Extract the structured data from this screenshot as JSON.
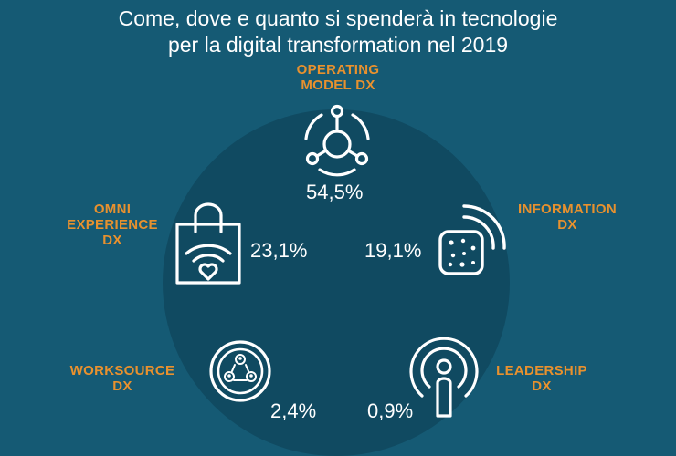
{
  "title": {
    "line1": "Come, dove e quanto si spenderà in tecnologie",
    "line2": "per la digital transformation nel 2019"
  },
  "segments": {
    "operating": {
      "label_line1": "OPERATING",
      "label_line2": "MODEL DX",
      "value": "54,5%"
    },
    "omni": {
      "label_line1": "OMNI",
      "label_line2": "EXPERIENCE",
      "label_line3": "DX",
      "value": "23,1%"
    },
    "information": {
      "label_line1": "INFORMATION",
      "label_line2": "DX",
      "value": "19,1%"
    },
    "worksource": {
      "label_line1": "WORKSOURCE",
      "label_line2": "DX",
      "value": "2,4%"
    },
    "leadership": {
      "label_line1": "LEADERSHIP",
      "label_line2": "DX",
      "value": "0,9%"
    }
  },
  "colors": {
    "background": "#155a74",
    "circle": "#104a61",
    "label": "#e8912e",
    "text": "#ffffff"
  }
}
